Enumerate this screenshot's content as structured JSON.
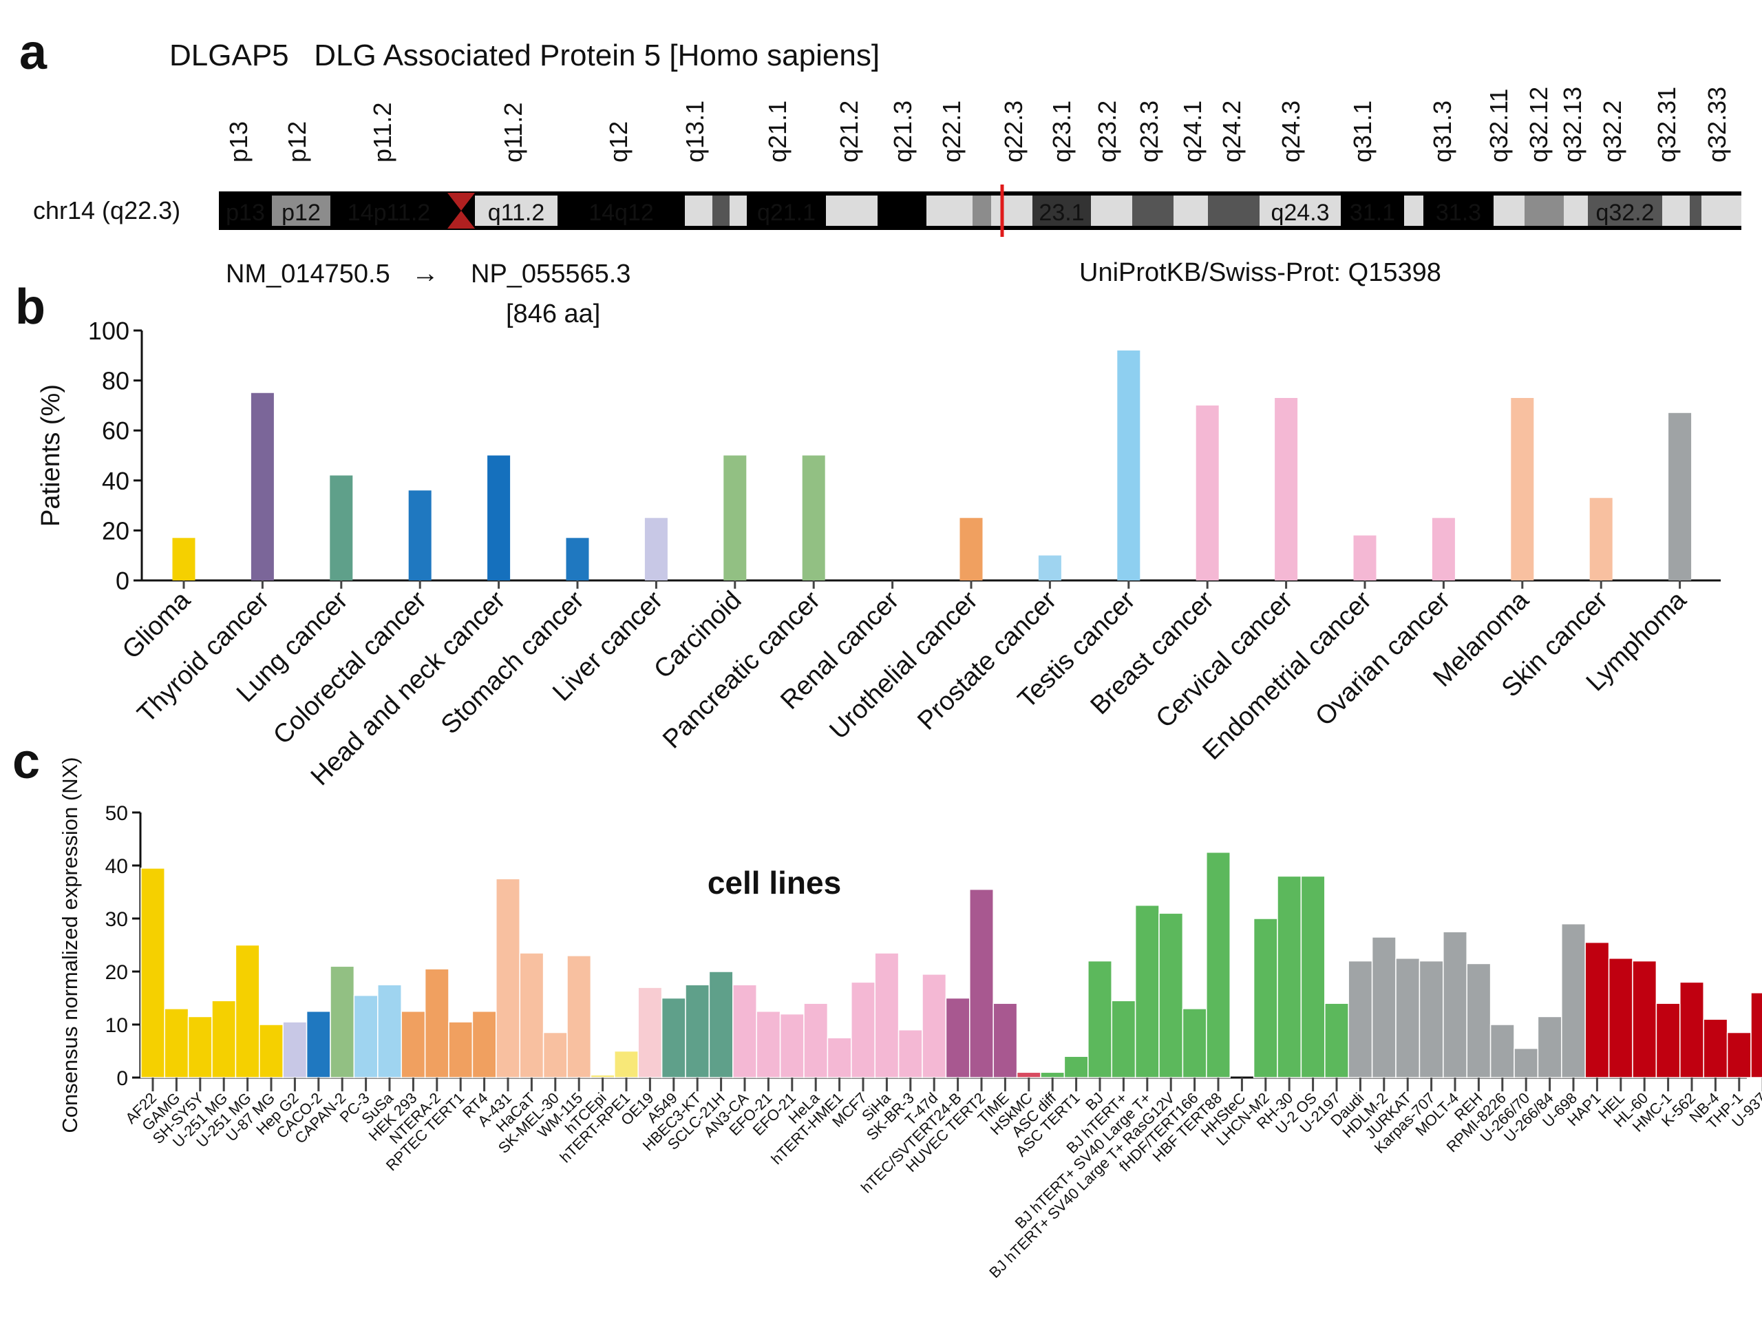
{
  "panel_letters": {
    "a": "a",
    "b": "b",
    "c": "c"
  },
  "gene": {
    "title": "DLGAP5   DLG Associated Protein 5 [Homo sapiens]",
    "chromosome_label": "chr14 (q22.3)",
    "transcript": "NM_014750.5",
    "arrow": "→",
    "protein": "NP_055565.3",
    "protein_length": "[846 aa]",
    "uniprot": "UniProtKB/Swiss-Prot: Q15398",
    "accent_color": "#e01b1b",
    "band_ticks": [
      "p13",
      "p12",
      "p11.2",
      "q11.2",
      "q12",
      "q13.1",
      "q21.1",
      "q21.2",
      "q21.3",
      "q22.1",
      "q22.3",
      "q23.1",
      "q23.2",
      "q23.3",
      "q24.1",
      "q24.2",
      "q24.3",
      "q31.1",
      "q31.3",
      "q32.11",
      "q32.12",
      "q32.13",
      "q32.2",
      "q32.31",
      "q32.33"
    ],
    "bands": [
      {
        "label": "p13",
        "color": "#000000"
      },
      {
        "label": "p12",
        "color": "#8c8c8c"
      },
      {
        "label": "14p11.2",
        "color": "#000000"
      },
      {
        "label": "",
        "color": "centromere"
      },
      {
        "label": "q11.2",
        "color": "#dcdcdc"
      },
      {
        "label": "14q12",
        "color": "#000000"
      },
      {
        "label": "",
        "color": "#dcdcdc"
      },
      {
        "label": "",
        "color": "#555555"
      },
      {
        "label": "",
        "color": "#dcdcdc"
      },
      {
        "label": "q21.1",
        "color": "#000000"
      },
      {
        "label": "",
        "color": "#dcdcdc"
      },
      {
        "label": "",
        "color": "#000000"
      },
      {
        "label": "",
        "color": "#dcdcdc"
      },
      {
        "label": "",
        "color": "#8c8c8c"
      },
      {
        "label": "",
        "color": "#dcdcdc"
      },
      {
        "label": "23.1",
        "color": "#333333"
      },
      {
        "label": "",
        "color": "#dcdcdc"
      },
      {
        "label": "",
        "color": "#555555"
      },
      {
        "label": "",
        "color": "#dcdcdc"
      },
      {
        "label": "",
        "color": "#555555"
      },
      {
        "label": "q24.3",
        "color": "#dcdcdc"
      },
      {
        "label": "31.1",
        "color": "#000000"
      },
      {
        "label": "",
        "color": "#dcdcdc"
      },
      {
        "label": "31.3",
        "color": "#000000"
      },
      {
        "label": "",
        "color": "#dcdcdc"
      },
      {
        "label": "",
        "color": "#8c8c8c"
      },
      {
        "label": "",
        "color": "#dcdcdc"
      },
      {
        "label": "q32.2",
        "color": "#555555"
      },
      {
        "label": "",
        "color": "#dcdcdc"
      },
      {
        "label": "",
        "color": "#555555"
      },
      {
        "label": "",
        "color": "#dcdcdc"
      }
    ],
    "marker_band": "q22.3"
  },
  "chart_data": [
    {
      "type": "bar",
      "title": "",
      "xlabel": "",
      "ylabel": "Patients (%)",
      "ylim": [
        0,
        100
      ],
      "yticks": [
        0,
        20,
        40,
        60,
        80,
        100
      ],
      "grid": false,
      "categories": [
        "Glioma",
        "Thyroid cancer",
        "Lung cancer",
        "Colorectal cancer",
        "Head and neck cancer",
        "Stomach cancer",
        "Liver cancer",
        "Carcinoid",
        "Pancreatic cancer",
        "Renal cancer",
        "Urothelial cancer",
        "Prostate cancer",
        "Testis cancer",
        "Breast cancer",
        "Cervical cancer",
        "Endometrial cancer",
        "Ovarian cancer",
        "Melanoma",
        "Skin cancer",
        "Lymphoma"
      ],
      "values": [
        17,
        75,
        42,
        36,
        50,
        17,
        25,
        50,
        50,
        0,
        25,
        10,
        92,
        70,
        73,
        18,
        25,
        73,
        33,
        67
      ],
      "colors": [
        "#f5d000",
        "#7b6699",
        "#5fa08a",
        "#1f78c0",
        "#1570bd",
        "#1f78c0",
        "#c8c8e6",
        "#92c083",
        "#92c083",
        "#cccccc",
        "#f0a060",
        "#9fd4f0",
        "#8ecff0",
        "#f4b8d4",
        "#f4b8d4",
        "#f4b8d4",
        "#f4b8d4",
        "#f8c0a0",
        "#f8c0a0",
        "#9fa3a5"
      ]
    },
    {
      "type": "bar",
      "title": "cell lines",
      "xlabel": "",
      "ylabel": "Consensus normalized expression (NX)",
      "ylim": [
        0,
        50
      ],
      "yticks": [
        0,
        10,
        20,
        30,
        40,
        50
      ],
      "grid": false,
      "categories": [
        "AF22",
        "GAMG",
        "SH-SY5Y",
        "U-251 MG",
        "U-251 MG",
        "U-87 MG",
        "Hep G2",
        "CACO-2",
        "CAPAN-2",
        "PC-3",
        "SuSa",
        "HEK 293",
        "NTERA-2",
        "RPTEC TERT1",
        "RT4",
        "A-431",
        "HaCaT",
        "SK-MEL-30",
        "WM-115",
        "hTCEpi",
        "hTERT-RPE1",
        "OE19",
        "A549",
        "HBEC3-KT",
        "SCLC-21H",
        "AN3-CA",
        "EFO-21",
        "EFO-21",
        "HeLa",
        "hTERT-HME1",
        "MCF7",
        "SiHa",
        "SK-BR-3",
        "T-47d",
        "hTEC/SVTERT24-B",
        "HUVEC TERT2",
        "TIME",
        "HSkMC",
        "ASC diff",
        "ASC TERT1",
        "BJ",
        "BJ hTERT+",
        "BJ hTERT+ SV40 Large T+",
        "BJ hTERT+ SV40 Large T+ RasG12V",
        "fHDF/TERT166",
        "HBF TERT88",
        "HHSteC",
        "LHCN-M2",
        "RH-30",
        "U-2 OS",
        "U-2197",
        "Daudi",
        "HDLM-2",
        "JURKAT",
        "Karpas-707",
        "MOLT-4",
        "REH",
        "RPMI-8226",
        "U-266/70",
        "U-266/84",
        "U-698",
        "HAP1",
        "HEL",
        "HL-60",
        "HMC-1",
        "K-562",
        "NB-4",
        "THP-1",
        "U-937"
      ],
      "values": [
        39.5,
        13,
        11.5,
        14.5,
        25,
        10,
        10.5,
        12.5,
        21,
        15.5,
        17.5,
        12.5,
        20.5,
        10.5,
        12.5,
        37.5,
        23.5,
        8.5,
        23,
        0.5,
        5,
        17,
        15,
        17.5,
        20,
        17.5,
        12.5,
        12,
        14,
        7.5,
        18,
        23.5,
        9,
        19.5,
        15,
        35.5,
        14,
        1,
        1,
        4,
        22,
        14.5,
        32.5,
        31,
        13,
        42.5,
        0,
        30,
        38,
        38,
        14,
        22,
        26.5,
        22.5,
        22,
        27.5,
        21.5,
        10,
        5.5,
        11.5,
        29,
        25.5,
        22.5,
        22,
        14,
        18,
        11,
        8.5,
        16
      ],
      "colors": [
        "#f5d000",
        "#f5d000",
        "#f5d000",
        "#f5d000",
        "#f5d000",
        "#f5d000",
        "#c8c8e6",
        "#1f78c0",
        "#92c083",
        "#9fd4f0",
        "#9fd4f0",
        "#f0a060",
        "#f0a060",
        "#f0a060",
        "#f0a060",
        "#f8c0a0",
        "#f8c0a0",
        "#f8c0a0",
        "#f8c0a0",
        "#f8e878",
        "#f8e878",
        "#f8ccd2",
        "#5fa08a",
        "#5fa08a",
        "#5fa08a",
        "#f4b8d4",
        "#f4b8d4",
        "#f4b8d4",
        "#f4b8d4",
        "#f4b8d4",
        "#f4b8d4",
        "#f4b8d4",
        "#f4b8d4",
        "#f4b8d4",
        "#a85890",
        "#a85890",
        "#a85890",
        "#d84a60",
        "#5cb85c",
        "#5cb85c",
        "#5cb85c",
        "#5cb85c",
        "#5cb85c",
        "#5cb85c",
        "#5cb85c",
        "#5cb85c",
        "#5cb85c",
        "#5cb85c",
        "#5cb85c",
        "#5cb85c",
        "#5cb85c",
        "#a0a4a6",
        "#a0a4a6",
        "#a0a4a6",
        "#a0a4a6",
        "#a0a4a6",
        "#a0a4a6",
        "#a0a4a6",
        "#a0a4a6",
        "#a0a4a6",
        "#a0a4a6",
        "#c00010",
        "#c00010",
        "#c00010",
        "#c00010",
        "#c00010",
        "#c00010",
        "#c00010",
        "#c00010"
      ]
    }
  ]
}
